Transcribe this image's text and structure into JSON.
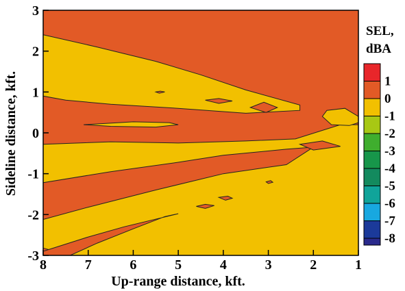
{
  "chart_data": {
    "type": "heatmap",
    "subtype": "filled-contour",
    "xlabel": "Up-range distance, kft.",
    "ylabel": "Sideline distance, kft.",
    "x_ticks": [
      8,
      7,
      6,
      5,
      4,
      3,
      2,
      1
    ],
    "y_ticks": [
      3,
      2,
      1,
      0,
      -1,
      -2,
      -3
    ],
    "xlim": [
      8,
      1
    ],
    "ylim": [
      -3,
      3
    ],
    "x_reversed": true,
    "legend": {
      "title_line1": "SEL,",
      "title_line2": "dBA",
      "levels": [
        {
          "label": "1",
          "color": "#e8262a"
        },
        {
          "label": "0",
          "color": "#e25a26"
        },
        {
          "label": "-1",
          "color": "#f2c000"
        },
        {
          "label": "-2",
          "color": "#a8c814"
        },
        {
          "label": "-3",
          "color": "#3fae2e"
        },
        {
          "label": "-4",
          "color": "#17964a"
        },
        {
          "label": "-5",
          "color": "#138a5e"
        },
        {
          "label": "-6",
          "color": "#10a49a"
        },
        {
          "label": "-7",
          "color": "#18a8e0"
        },
        {
          "label": "-8",
          "color": "#1b3a9a"
        }
      ],
      "bottom_color": "#2a2a8c",
      "placement": "right"
    },
    "background_level_color": "#e25a26",
    "regions": [
      {
        "level": "-1",
        "color": "#f2c000",
        "points": [
          [
            7.4,
            -3
          ],
          [
            1.0,
            -3
          ],
          [
            1.0,
            0.2
          ],
          [
            1.4,
            0.2
          ],
          [
            2.4,
            -0.15
          ],
          [
            3.5,
            -0.2
          ],
          [
            5.0,
            -0.25
          ],
          [
            6.5,
            -0.22
          ],
          [
            8.0,
            -0.28
          ],
          [
            8.0,
            -1.22
          ],
          [
            6.5,
            -0.95
          ],
          [
            5.0,
            -0.72
          ],
          [
            4.0,
            -0.55
          ],
          [
            2.6,
            -0.4
          ],
          [
            2.0,
            -0.35
          ],
          [
            2.6,
            -0.78
          ],
          [
            4.0,
            -1.0
          ],
          [
            5.5,
            -1.4
          ],
          [
            7.0,
            -1.82
          ],
          [
            8.0,
            -2.12
          ],
          [
            8.0,
            -2.82
          ]
        ]
      },
      {
        "level": "-1",
        "color": "#f2c000",
        "points": [
          [
            8.0,
            2.4
          ],
          [
            6.8,
            2.1
          ],
          [
            5.5,
            1.75
          ],
          [
            4.5,
            1.42
          ],
          [
            3.5,
            1.05
          ],
          [
            2.3,
            0.68
          ],
          [
            2.3,
            0.55
          ],
          [
            3.5,
            0.48
          ],
          [
            5.0,
            0.6
          ],
          [
            6.5,
            0.7
          ],
          [
            7.5,
            0.8
          ],
          [
            8.0,
            0.9
          ]
        ]
      },
      {
        "level": "-1",
        "color": "#f2c000",
        "points": [
          [
            7.1,
            0.2
          ],
          [
            6.0,
            0.27
          ],
          [
            5.2,
            0.25
          ],
          [
            5.0,
            0.2
          ],
          [
            5.5,
            0.14
          ],
          [
            6.5,
            0.16
          ]
        ]
      },
      {
        "level": "-1",
        "color": "#f2c000",
        "points": [
          [
            1.0,
            0.4
          ],
          [
            1.3,
            0.6
          ],
          [
            1.7,
            0.55
          ],
          [
            1.8,
            0.4
          ],
          [
            1.6,
            0.2
          ],
          [
            1.2,
            0.18
          ],
          [
            1.0,
            0.25
          ]
        ]
      },
      {
        "level": "0",
        "color": "#e25a26",
        "points": [
          [
            5.0,
            -1.98
          ],
          [
            5.3,
            -2.05
          ],
          [
            6.0,
            -2.35
          ],
          [
            6.8,
            -2.7
          ],
          [
            7.4,
            -3.0
          ],
          [
            8.0,
            -3.0
          ],
          [
            8.0,
            -2.9
          ],
          [
            7.0,
            -2.55
          ],
          [
            6.2,
            -2.3
          ]
        ]
      },
      {
        "level": "0",
        "color": "#e25a26",
        "points": [
          [
            4.6,
            -1.8
          ],
          [
            4.4,
            -1.75
          ],
          [
            4.2,
            -1.78
          ],
          [
            4.4,
            -1.85
          ]
        ]
      },
      {
        "level": "0",
        "color": "#e25a26",
        "points": [
          [
            4.1,
            -1.58
          ],
          [
            3.9,
            -1.55
          ],
          [
            3.8,
            -1.6
          ],
          [
            3.95,
            -1.65
          ]
        ]
      },
      {
        "level": "0",
        "color": "#e25a26",
        "points": [
          [
            3.05,
            -1.2
          ],
          [
            2.95,
            -1.17
          ],
          [
            2.9,
            -1.21
          ],
          [
            3.0,
            -1.24
          ]
        ]
      },
      {
        "level": "0",
        "color": "#e25a26",
        "points": [
          [
            5.5,
            1.0
          ],
          [
            5.4,
            1.02
          ],
          [
            5.3,
            1.0
          ],
          [
            5.42,
            0.97
          ]
        ]
      },
      {
        "level": "0",
        "color": "#e25a26",
        "points": [
          [
            4.4,
            0.8
          ],
          [
            4.1,
            0.84
          ],
          [
            3.8,
            0.78
          ],
          [
            4.1,
            0.72
          ]
        ]
      },
      {
        "level": "0",
        "color": "#e25a26",
        "points": [
          [
            3.4,
            0.62
          ],
          [
            3.1,
            0.75
          ],
          [
            2.8,
            0.62
          ],
          [
            3.05,
            0.5
          ]
        ]
      },
      {
        "level": "0",
        "color": "#e25a26",
        "points": [
          [
            2.3,
            -0.28
          ],
          [
            1.8,
            -0.2
          ],
          [
            1.4,
            -0.33
          ],
          [
            2.0,
            -0.42
          ]
        ]
      }
    ]
  }
}
